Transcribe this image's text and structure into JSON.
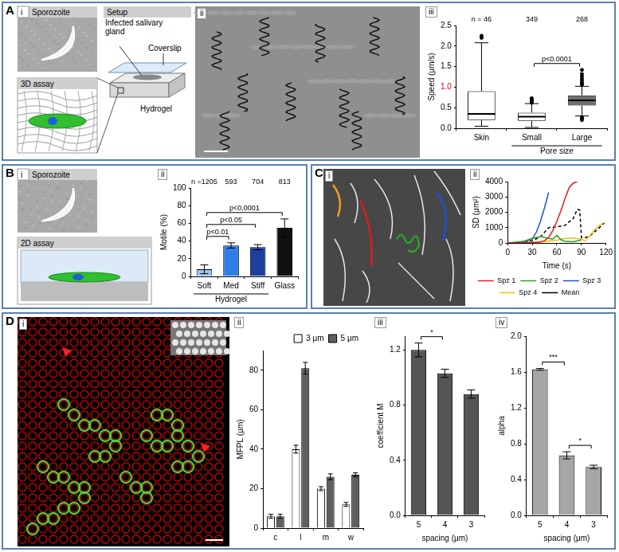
{
  "panels": {
    "A": {
      "letter": "A",
      "i": {
        "label": "i",
        "sporozoite": "Sporozoite",
        "setup": "Setup",
        "assay": "3D assay",
        "coverslip": "Coverslip",
        "gland": "Infected salivary gland",
        "hydrogel": "Hydrogel"
      },
      "ii": {
        "label": "ii"
      },
      "iii": {
        "label": "iii"
      }
    },
    "B": {
      "letter": "B",
      "i": {
        "label": "i",
        "sporozoite": "Sporozoite",
        "assay": "2D assay"
      },
      "ii": {
        "label": "ii"
      }
    },
    "C": {
      "letter": "C",
      "i": {
        "label": "i"
      },
      "ii": {
        "label": "ii"
      }
    },
    "D": {
      "letter": "D",
      "i": {
        "label": "i"
      },
      "ii": {
        "label": "ii"
      },
      "iii": {
        "label": "iii"
      },
      "iv": {
        "label": "iv"
      }
    }
  },
  "chart_data": [
    {
      "type": "box",
      "ylabel": "Speed (μm/s)",
      "categories": [
        "Skin",
        "Small",
        "Large"
      ],
      "category_groups": [
        {
          "label": "Pore size",
          "categories": [
            "Small",
            "Large"
          ]
        }
      ],
      "n_labels": [
        "n = 46",
        "349",
        "268"
      ],
      "boxes": [
        {
          "low": 0.05,
          "q1": 0.2,
          "median": 0.35,
          "q3": 0.9,
          "high": 2.08,
          "outliers": [
            2.2,
            2.25
          ]
        },
        {
          "low": 0.02,
          "q1": 0.18,
          "median": 0.28,
          "q3": 0.38,
          "high": 0.6,
          "outliers": [
            0.62,
            0.65,
            0.68,
            0.7,
            0.73
          ]
        },
        {
          "low": 0.3,
          "q1": 0.55,
          "median": 0.68,
          "q3": 0.8,
          "high": 1.02,
          "outliers": [
            0.2,
            0.24,
            0.27,
            1.06,
            1.1,
            1.15,
            1.2,
            1.26,
            1.32,
            1.42
          ]
        }
      ],
      "colors": [
        "#ffffff",
        "#ffffff",
        "#707070"
      ],
      "ylim": [
        0,
        2.5
      ],
      "yticks": [
        {
          "value": 0,
          "label": "0.0"
        },
        0.5,
        {
          "value": 1,
          "label": "1.0",
          "color": "#e00000"
        },
        1.5,
        {
          "value": 2,
          "label": "2.0"
        },
        2.5
      ],
      "grid": false,
      "annotations": [
        {
          "text": "p<0.0001",
          "from": "Small",
          "to": "Large"
        }
      ]
    },
    {
      "type": "bar",
      "ylabel": "Motile (%)",
      "categories": [
        "Soft",
        "Med",
        "Stiff",
        "Glass"
      ],
      "category_groups": [
        {
          "label": "Hydrogel",
          "categories": [
            "Soft",
            "Med",
            "Stiff"
          ]
        }
      ],
      "n_labels": [
        "n =1205",
        "593",
        "704",
        "813"
      ],
      "values": [
        8,
        35,
        33,
        55
      ],
      "errors": [
        5,
        3,
        3,
        10
      ],
      "colors": [
        "#9cc3f0",
        "#2f7fe6",
        "#1f3f9f",
        "#111111"
      ],
      "ylim": [
        0,
        100
      ],
      "yticks": [
        0,
        20,
        40,
        60,
        80,
        100
      ],
      "grid": false,
      "annotations": [
        {
          "text": "p<0.0001",
          "from": "Soft",
          "to": "Glass"
        },
        {
          "text": "p<0.05",
          "from": "Soft",
          "to": "Stiff"
        },
        {
          "text": "p<0.01",
          "from": "Soft",
          "to": "Med"
        }
      ]
    },
    {
      "type": "line",
      "xlabel": "Time (s)",
      "ylabel": "SD (μm²)",
      "xlim": [
        0,
        120
      ],
      "xticks": [
        0,
        30,
        60,
        90,
        120
      ],
      "ylim": [
        0,
        4000
      ],
      "yticks": [
        0,
        1000,
        2000,
        3000,
        4000
      ],
      "grid": false,
      "legend": "bottom",
      "series": [
        {
          "name": "Spz 1",
          "color": "#e41a1c",
          "x": [
            0,
            10,
            20,
            30,
            40,
            45,
            50,
            55,
            60,
            65,
            70,
            75,
            80,
            85
          ],
          "values": [
            0,
            10,
            20,
            30,
            60,
            150,
            350,
            800,
            1400,
            2100,
            2900,
            3600,
            3900,
            4000
          ]
        },
        {
          "name": "Spz 2",
          "color": "#2ca02c",
          "x": [
            0,
            10,
            20,
            30,
            40,
            50,
            55,
            60,
            65,
            70,
            80,
            90
          ],
          "values": [
            0,
            50,
            120,
            300,
            420,
            300,
            250,
            500,
            220,
            100,
            80,
            200
          ]
        },
        {
          "name": "Spz 3",
          "color": "#1f4fd8",
          "x": [
            0,
            10,
            20,
            30,
            35,
            40,
            45,
            50
          ],
          "values": [
            0,
            20,
            60,
            250,
            700,
            1400,
            2300,
            3300
          ]
        },
        {
          "name": "Spz 4",
          "color": "#f2c10f",
          "x": [
            0,
            20,
            40,
            60,
            70,
            80,
            90,
            95,
            100,
            105,
            110,
            115,
            118
          ],
          "values": [
            0,
            20,
            60,
            180,
            300,
            320,
            250,
            150,
            450,
            800,
            1050,
            1250,
            1350
          ]
        },
        {
          "name": "Mean",
          "color": "#000000",
          "line_style": "dashed",
          "x": [
            0,
            20,
            30,
            40,
            45,
            50,
            60,
            70,
            80,
            85,
            88,
            90,
            95,
            100,
            110,
            118
          ],
          "values": [
            0,
            40,
            150,
            400,
            700,
            1000,
            1050,
            1150,
            1600,
            2200,
            2150,
            350,
            350,
            450,
            900,
            1300
          ]
        }
      ]
    },
    {
      "type": "bar",
      "ylabel": "MFPL (μm)",
      "categories": [
        "c",
        "l",
        "m",
        "w"
      ],
      "series": [
        {
          "name": "3 μm",
          "color": "#ffffff",
          "values": [
            6,
            40,
            20,
            12
          ],
          "errors": [
            1,
            2,
            1,
            1
          ]
        },
        {
          "name": "5 μm",
          "color": "#5f5f5f",
          "values": [
            6,
            81,
            26,
            27
          ],
          "errors": [
            1,
            3,
            1.5,
            1
          ]
        }
      ],
      "ylim": [
        0,
        90
      ],
      "yticks": [
        0,
        20,
        40,
        60,
        80
      ],
      "grid": false,
      "legend": "top right"
    },
    {
      "type": "bar",
      "ylabel": "coefficient M",
      "xlabel": "spacing (μm)",
      "categories": [
        "5",
        "4",
        "3"
      ],
      "values": [
        1.2,
        1.03,
        0.88
      ],
      "errors": [
        0.05,
        0.03,
        0.03
      ],
      "color": "#555555",
      "ylim": [
        0,
        1.3
      ],
      "yticks": [
        {
          "value": 0,
          "label": "0.0"
        },
        0.4,
        0.8,
        1.2
      ],
      "grid": false,
      "annotations": [
        {
          "text": "*",
          "from": "5",
          "to": "4"
        }
      ]
    },
    {
      "type": "bar",
      "ylabel": "alpha",
      "xlabel": "spacing (μm)",
      "categories": [
        "5",
        "4",
        "3"
      ],
      "values": [
        1.63,
        0.67,
        0.54
      ],
      "errors": [
        0.01,
        0.04,
        0.02
      ],
      "color": "#a6a6a6",
      "ylim": [
        0,
        2.0
      ],
      "yticks": [
        {
          "value": 0,
          "label": "0.0"
        },
        0.4,
        0.8,
        1.2,
        1.6,
        {
          "value": 2,
          "label": "2.0"
        }
      ],
      "grid": false,
      "annotations": [
        {
          "text": "***",
          "from": "5",
          "to": "4"
        },
        {
          "text": "*",
          "from": "4",
          "to": "3"
        }
      ]
    }
  ]
}
